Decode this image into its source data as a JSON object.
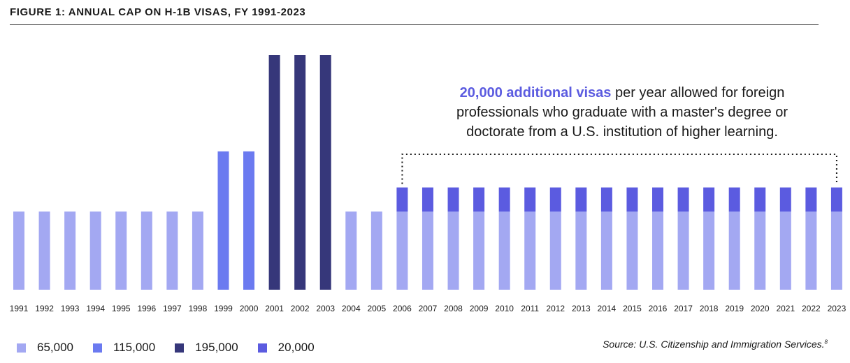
{
  "title": "FIGURE 1: ANNUAL CAP ON H-1B VISAS, FY 1991-2023",
  "annotation": {
    "highlight": "20,000 additional visas",
    "line1_rest": " per year allowed for foreign",
    "line2": "professionals who graduate with a master's degree or",
    "line3": "doctorate from a U.S. institution of higher learning."
  },
  "source": {
    "text": "Source: U.S. Citizenship and Immigration Services.",
    "note": "8"
  },
  "colors": {
    "c65000": "#a3a8f2",
    "c115000": "#6b7af0",
    "c195000": "#36377a",
    "c20000": "#5b5be0"
  },
  "legend": [
    {
      "label": "65,000",
      "color": "#a3a8f2"
    },
    {
      "label": "115,000",
      "color": "#6b7af0"
    },
    {
      "label": "195,000",
      "color": "#36377a"
    },
    {
      "label": "20,000",
      "color": "#5b5be0"
    }
  ],
  "chart_data": {
    "type": "bar",
    "stacked": true,
    "categories": [
      "1991",
      "1992",
      "1993",
      "1994",
      "1995",
      "1996",
      "1997",
      "1998",
      "1999",
      "2000",
      "2001",
      "2002",
      "2003",
      "2004",
      "2005",
      "2006",
      "2007",
      "2008",
      "2009",
      "2010",
      "2011",
      "2012",
      "2013",
      "2014",
      "2015",
      "2016",
      "2017",
      "2018",
      "2019",
      "2020",
      "2021",
      "2022",
      "2023"
    ],
    "base_values": [
      65000,
      65000,
      65000,
      65000,
      65000,
      65000,
      65000,
      65000,
      115000,
      115000,
      195000,
      195000,
      195000,
      65000,
      65000,
      65000,
      65000,
      65000,
      65000,
      65000,
      65000,
      65000,
      65000,
      65000,
      65000,
      65000,
      65000,
      65000,
      65000,
      65000,
      65000,
      65000,
      65000
    ],
    "additional_values": [
      0,
      0,
      0,
      0,
      0,
      0,
      0,
      0,
      0,
      0,
      0,
      0,
      0,
      0,
      0,
      20000,
      20000,
      20000,
      20000,
      20000,
      20000,
      20000,
      20000,
      20000,
      20000,
      20000,
      20000,
      20000,
      20000,
      20000,
      20000,
      20000,
      20000
    ],
    "ylim": [
      0,
      195000
    ],
    "grid": false,
    "legend_position": "bottom-left"
  }
}
